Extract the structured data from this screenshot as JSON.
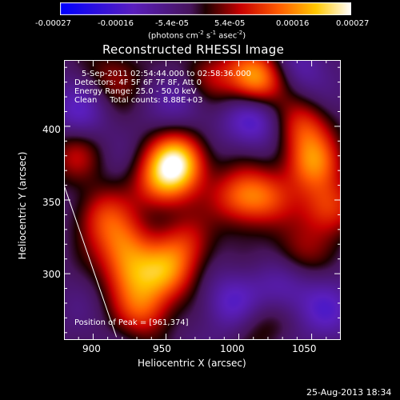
{
  "colorbar": {
    "ticks": [
      "-0.00027",
      "-0.00016",
      "-5.4e-05",
      "5.4e-05",
      "0.00016",
      "0.00027"
    ],
    "units_prefix": "(photons cm",
    "units_exp1": "-2",
    "units_mid1": " s",
    "units_exp2": "-1",
    "units_mid2": " asec",
    "units_exp3": "-2",
    "units_suffix": ")",
    "range": [
      -0.00027,
      0.00027
    ]
  },
  "chart_data": {
    "type": "heatmap",
    "title": "Reconstructed RHESSI Image",
    "xlabel": "Heliocentric X (arcsec)",
    "ylabel": "Heliocentric Y (arcsec)",
    "xlim": [
      880,
      1070
    ],
    "ylim": [
      255,
      445
    ],
    "xticks": [
      "900",
      "950",
      "1000",
      "1050"
    ],
    "xtick_values": [
      900,
      950,
      1000,
      1050
    ],
    "yticks": [
      "300",
      "350",
      "400"
    ],
    "ytick_values": [
      300,
      350,
      400
    ],
    "peak": [
      961,
      374
    ],
    "blobs": [
      {
        "x": 958,
        "y": 376,
        "amp": 1.0
      },
      {
        "x": 946,
        "y": 360,
        "amp": 0.55
      },
      {
        "x": 1012,
        "y": 432,
        "amp": 0.85
      },
      {
        "x": 978,
        "y": 434,
        "amp": 0.45
      },
      {
        "x": 915,
        "y": 435,
        "amp": 0.35
      },
      {
        "x": 1000,
        "y": 352,
        "amp": 0.55
      },
      {
        "x": 1018,
        "y": 352,
        "amp": 0.45
      },
      {
        "x": 1050,
        "y": 375,
        "amp": 0.65
      },
      {
        "x": 1062,
        "y": 345,
        "amp": 0.6
      },
      {
        "x": 1045,
        "y": 400,
        "amp": 0.5
      },
      {
        "x": 920,
        "y": 320,
        "amp": 0.55
      },
      {
        "x": 905,
        "y": 340,
        "amp": 0.45
      },
      {
        "x": 925,
        "y": 300,
        "amp": 0.5
      },
      {
        "x": 950,
        "y": 300,
        "amp": 0.6
      },
      {
        "x": 965,
        "y": 320,
        "amp": 0.45
      },
      {
        "x": 935,
        "y": 275,
        "amp": 0.55
      },
      {
        "x": 1040,
        "y": 315,
        "amp": 0.35
      },
      {
        "x": 1015,
        "y": 265,
        "amp": 0.25
      },
      {
        "x": 887,
        "y": 380,
        "amp": 0.35
      },
      {
        "x": 1010,
        "y": 405,
        "amp": -0.45
      },
      {
        "x": 995,
        "y": 280,
        "amp": -0.35
      },
      {
        "x": 965,
        "y": 420,
        "amp": -0.3
      },
      {
        "x": 1030,
        "y": 290,
        "amp": -0.3
      },
      {
        "x": 890,
        "y": 410,
        "amp": -0.3
      },
      {
        "x": 1045,
        "y": 440,
        "amp": -0.25
      },
      {
        "x": 1060,
        "y": 275,
        "amp": -0.3
      }
    ],
    "limb_line": [
      [
        880,
        360
      ],
      [
        916,
        257
      ]
    ]
  },
  "annotations": {
    "time": "5-Sep-2011 02:54:44.000 to 02:58:36.000",
    "detectors": "Detectors: 4F 5F 6F 7F 8F, Att 0",
    "energy": "Energy Range: 25.0 - 50.0 keV",
    "clean": "Clean     Total counts: 8.88E+03",
    "peak": "Position of Peak = [961,374]"
  },
  "footer": "25-Aug-2013 18:34"
}
